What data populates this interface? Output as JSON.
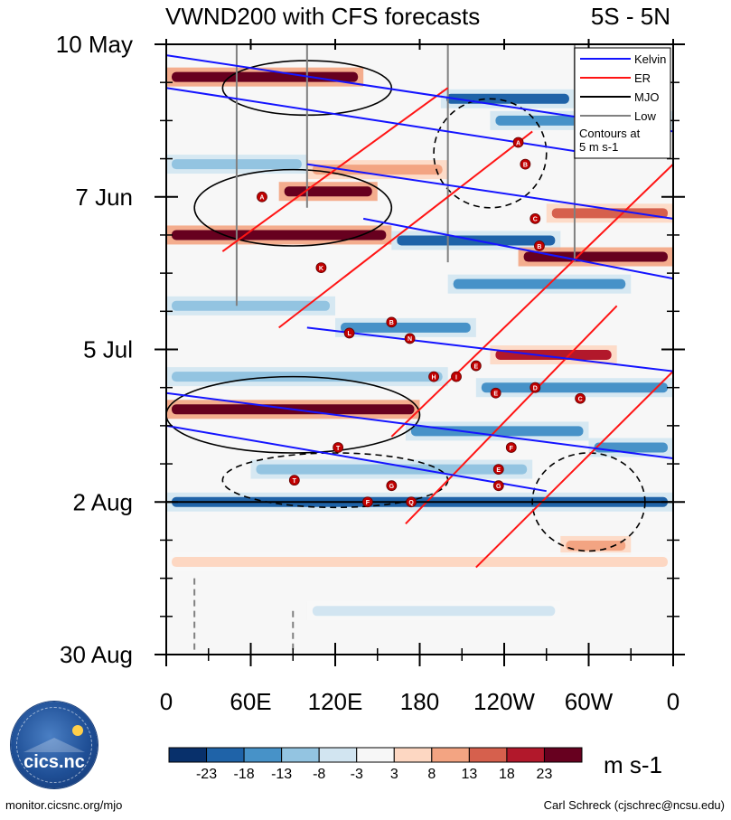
{
  "chart_data": {
    "type": "heatmap",
    "title": "VWND200 with CFS forecasts",
    "region": "5S - 5N",
    "y_ticks": [
      "10 May",
      "7 Jun",
      "5 Jul",
      "2 Aug",
      "30 Aug"
    ],
    "x_ticks": [
      "0",
      "60E",
      "120E",
      "180",
      "120W",
      "60W",
      "0"
    ],
    "x_range_deg": [
      0,
      360
    ],
    "y_range_days": [
      0,
      112
    ],
    "forecast_start_day": 84,
    "colorbar": {
      "ticks": [
        "-23",
        "-18",
        "-13",
        "-8",
        "-3",
        "3",
        "8",
        "13",
        "18",
        "23"
      ],
      "colors": [
        "#08306b",
        "#1f63a8",
        "#4792c8",
        "#93c4e1",
        "#d2e5f1",
        "#f7f7f7",
        "#fdd7c2",
        "#f3a482",
        "#d6604d",
        "#b2182b",
        "#67001f"
      ],
      "unit": "m s-1"
    },
    "legend": [
      {
        "name": "Kelvin",
        "color": "#1414ff"
      },
      {
        "name": "ER",
        "color": "#ff1414"
      },
      {
        "name": "MJO",
        "color": "#000000"
      },
      {
        "name": "Low",
        "color": "#808080"
      }
    ],
    "legend_note_1": "Contours at",
    "legend_note_2": "5 m s-1",
    "anomaly_bands": [
      {
        "day": 6,
        "lon_start": 0,
        "lon_end": 140,
        "value": 26
      },
      {
        "day": 10,
        "lon_start": 195,
        "lon_end": 290,
        "value": -22
      },
      {
        "day": 14,
        "lon_start": 230,
        "lon_end": 360,
        "value": -14
      },
      {
        "day": 22,
        "lon_start": 0,
        "lon_end": 100,
        "value": -12
      },
      {
        "day": 23,
        "lon_start": 100,
        "lon_end": 200,
        "value": 9
      },
      {
        "day": 27,
        "lon_start": 80,
        "lon_end": 150,
        "value": 24
      },
      {
        "day": 31,
        "lon_start": 270,
        "lon_end": 360,
        "value": 14
      },
      {
        "day": 35,
        "lon_start": 0,
        "lon_end": 160,
        "value": 27
      },
      {
        "day": 36,
        "lon_start": 160,
        "lon_end": 280,
        "value": -20
      },
      {
        "day": 39,
        "lon_start": 250,
        "lon_end": 360,
        "value": 24
      },
      {
        "day": 44,
        "lon_start": 200,
        "lon_end": 330,
        "value": -16
      },
      {
        "day": 48,
        "lon_start": 0,
        "lon_end": 120,
        "value": -10
      },
      {
        "day": 52,
        "lon_start": 120,
        "lon_end": 220,
        "value": -14
      },
      {
        "day": 57,
        "lon_start": 230,
        "lon_end": 320,
        "value": 22
      },
      {
        "day": 61,
        "lon_start": 0,
        "lon_end": 200,
        "value": -9
      },
      {
        "day": 63,
        "lon_start": 220,
        "lon_end": 360,
        "value": -18
      },
      {
        "day": 67,
        "lon_start": 0,
        "lon_end": 180,
        "value": 27
      },
      {
        "day": 71,
        "lon_start": 170,
        "lon_end": 300,
        "value": -14
      },
      {
        "day": 74,
        "lon_start": 300,
        "lon_end": 360,
        "value": -18
      },
      {
        "day": 78,
        "lon_start": 60,
        "lon_end": 260,
        "value": -10
      },
      {
        "day": 84,
        "lon_start": 0,
        "lon_end": 360,
        "value": -22
      },
      {
        "day": 92,
        "lon_start": 280,
        "lon_end": 330,
        "value": 12
      },
      {
        "day": 95,
        "lon_start": 0,
        "lon_end": 360,
        "value": 4
      },
      {
        "day": 104,
        "lon_start": 100,
        "lon_end": 280,
        "value": -5
      }
    ],
    "kelvin_phase_lines": [
      {
        "lon_start": 0,
        "day_start": 2,
        "lon_end": 360,
        "day_end": 16
      },
      {
        "lon_start": 0,
        "day_start": 8,
        "lon_end": 300,
        "day_end": 20
      },
      {
        "lon_start": 100,
        "day_start": 22,
        "lon_end": 360,
        "day_end": 32
      },
      {
        "lon_start": 140,
        "day_start": 32,
        "lon_end": 360,
        "day_end": 43
      },
      {
        "lon_start": 100,
        "day_start": 52,
        "lon_end": 360,
        "day_end": 60
      },
      {
        "lon_start": 0,
        "day_start": 64,
        "lon_end": 360,
        "day_end": 76
      },
      {
        "lon_start": 0,
        "day_start": 70,
        "lon_end": 270,
        "day_end": 82
      }
    ],
    "er_phase_lines": [
      {
        "lon_start": 200,
        "day_start": 8,
        "lon_end": 40,
        "day_end": 38
      },
      {
        "lon_start": 260,
        "day_start": 16,
        "lon_end": 80,
        "day_end": 52
      },
      {
        "lon_start": 360,
        "day_start": 22,
        "lon_end": 160,
        "day_end": 72
      },
      {
        "lon_start": 320,
        "day_start": 48,
        "lon_end": 170,
        "day_end": 88
      },
      {
        "lon_start": 360,
        "day_start": 60,
        "lon_end": 220,
        "day_end": 96
      }
    ],
    "mjo_contours": [
      {
        "lon": 100,
        "day": 8,
        "half_width": 60,
        "half_height": 5,
        "sign": 1
      },
      {
        "lon": 90,
        "day": 30,
        "half_width": 70,
        "half_height": 7,
        "sign": 1
      },
      {
        "lon": 90,
        "day": 68,
        "half_width": 90,
        "half_height": 7,
        "sign": 1
      },
      {
        "lon": 120,
        "day": 80,
        "half_width": 80,
        "half_height": 5,
        "sign": -1
      },
      {
        "lon": 230,
        "day": 20,
        "half_width": 40,
        "half_height": 10,
        "sign": -1
      },
      {
        "lon": 300,
        "day": 84,
        "half_width": 40,
        "half_height": 9,
        "sign": -1
      }
    ],
    "low_contours": [
      {
        "lon": 200,
        "day_start": 0,
        "day_end": 40
      },
      {
        "lon": 290,
        "day_start": 0,
        "day_end": 40
      },
      {
        "lon": 50,
        "day_start": 0,
        "day_end": 48
      },
      {
        "lon": 100,
        "day_start": 0,
        "day_end": 30
      },
      {
        "lon": 20,
        "day_start": 98,
        "day_end": 112
      },
      {
        "lon": 90,
        "day_start": 104,
        "day_end": 112
      }
    ],
    "storm_markers": [
      {
        "label": "A",
        "lon": 250,
        "day": 18
      },
      {
        "label": "B",
        "lon": 255,
        "day": 22
      },
      {
        "label": "A",
        "lon": 68,
        "day": 28
      },
      {
        "label": "C",
        "lon": 262,
        "day": 32
      },
      {
        "label": "B",
        "lon": 265,
        "day": 37
      },
      {
        "label": "K",
        "lon": 110,
        "day": 41
      },
      {
        "label": "B",
        "lon": 160,
        "day": 51
      },
      {
        "label": "L",
        "lon": 130,
        "day": 53
      },
      {
        "label": "N",
        "lon": 173,
        "day": 54
      },
      {
        "label": "E",
        "lon": 220,
        "day": 59
      },
      {
        "label": "H",
        "lon": 190,
        "day": 61
      },
      {
        "label": "I",
        "lon": 206,
        "day": 61
      },
      {
        "label": "D",
        "lon": 262,
        "day": 63
      },
      {
        "label": "E",
        "lon": 234,
        "day": 64
      },
      {
        "label": "C",
        "lon": 294,
        "day": 65
      },
      {
        "label": "T",
        "lon": 122,
        "day": 74
      },
      {
        "label": "F",
        "lon": 245,
        "day": 74
      },
      {
        "label": "E",
        "lon": 236,
        "day": 78
      },
      {
        "label": "T",
        "lon": 91,
        "day": 80
      },
      {
        "label": "G",
        "lon": 236,
        "day": 81
      },
      {
        "label": "G",
        "lon": 160,
        "day": 81
      },
      {
        "label": "F",
        "lon": 143,
        "day": 84
      },
      {
        "label": "Q",
        "lon": 174,
        "day": 84
      }
    ]
  },
  "footer": {
    "left": "monitor.cicsnc.org/mjo",
    "right": "Carl Schreck (cjschrec@ncsu.edu)"
  },
  "logo": {
    "text": "cics.nc",
    "ring_text": "Cooperative Institute for Climate and Satellites"
  }
}
